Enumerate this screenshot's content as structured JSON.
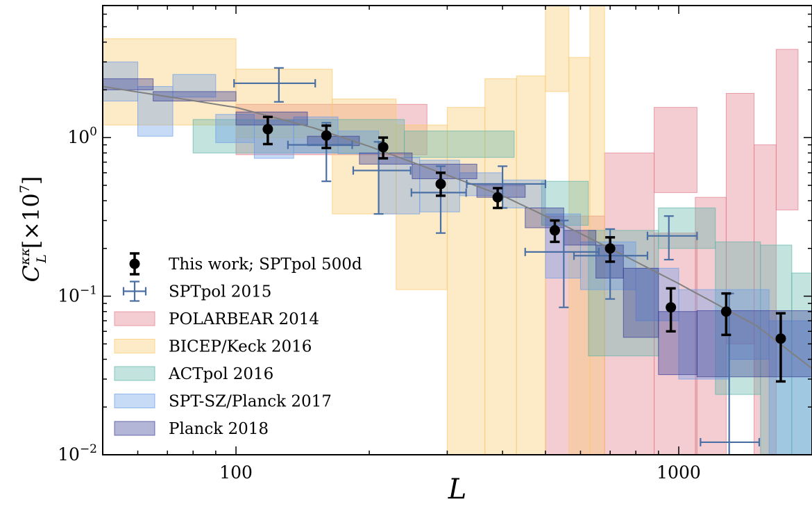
{
  "chart_data": {
    "type": "scatter",
    "title": "",
    "xlabel": "L",
    "ylabel_main": "C",
    "ylabel_superscript": "κκ",
    "ylabel_subscript": "L",
    "ylabel_units": "[×10",
    "ylabel_units_exp": "7",
    "ylabel_units_close": "]",
    "xscale": "log",
    "yscale": "log",
    "xlim": [
      50,
      2000
    ],
    "ylim": [
      0.01,
      6.8
    ],
    "x_ticks": [
      {
        "value": 100,
        "label": "100"
      },
      {
        "value": 1000,
        "label": "1000"
      }
    ],
    "y_ticks": [
      {
        "value": 0.01,
        "base": "10",
        "exp": "−2"
      },
      {
        "value": 0.1,
        "base": "10",
        "exp": "−1"
      },
      {
        "value": 1,
        "base": "10",
        "exp": "0"
      }
    ],
    "grid": false,
    "legend_position": "lower-left",
    "theory_curve": {
      "color": "#808080",
      "points": [
        [
          50,
          2.1
        ],
        [
          100,
          1.55
        ],
        [
          150,
          1.15
        ],
        [
          200,
          0.88
        ],
        [
          300,
          0.58
        ],
        [
          400,
          0.43
        ],
        [
          500,
          0.32
        ],
        [
          700,
          0.2
        ],
        [
          1000,
          0.12
        ],
        [
          1500,
          0.065
        ],
        [
          2000,
          0.035
        ]
      ]
    },
    "series": [
      {
        "name": "This work; SPTpol 500d",
        "kind": "points",
        "color": "#000000",
        "points": [
          {
            "x": 118,
            "y": 1.13,
            "ylo": 0.91,
            "yhi": 1.35
          },
          {
            "x": 160,
            "y": 1.03,
            "ylo": 0.86,
            "yhi": 1.19
          },
          {
            "x": 215,
            "y": 0.87,
            "ylo": 0.74,
            "yhi": 1.0
          },
          {
            "x": 290,
            "y": 0.51,
            "ylo": 0.43,
            "yhi": 0.6
          },
          {
            "x": 390,
            "y": 0.42,
            "ylo": 0.36,
            "yhi": 0.48
          },
          {
            "x": 525,
            "y": 0.26,
            "ylo": 0.22,
            "yhi": 0.3
          },
          {
            "x": 700,
            "y": 0.2,
            "ylo": 0.165,
            "yhi": 0.235
          },
          {
            "x": 960,
            "y": 0.085,
            "ylo": 0.06,
            "yhi": 0.112
          },
          {
            "x": 1280,
            "y": 0.08,
            "ylo": 0.057,
            "yhi": 0.104
          },
          {
            "x": 1700,
            "y": 0.054,
            "ylo": 0.029,
            "yhi": 0.078
          }
        ]
      },
      {
        "name": "SPTpol 2015",
        "kind": "errorbars",
        "color": "#4a6fa5",
        "points": [
          {
            "x": 125,
            "y": 2.2,
            "xlo": 99,
            "xhi": 151,
            "ylo": 1.68,
            "yhi": 2.75
          },
          {
            "x": 160,
            "y": 0.9,
            "xlo": 131,
            "xhi": 183,
            "ylo": 0.53,
            "yhi": 1.24
          },
          {
            "x": 210,
            "y": 0.62,
            "xlo": 184,
            "xhi": 248,
            "ylo": 0.33,
            "yhi": 0.94
          },
          {
            "x": 290,
            "y": 0.45,
            "xlo": 249,
            "xhi": 331,
            "ylo": 0.25,
            "yhi": 0.66
          },
          {
            "x": 400,
            "y": 0.51,
            "xlo": 332,
            "xhi": 500,
            "ylo": 0.36,
            "yhi": 0.66
          },
          {
            "x": 550,
            "y": 0.19,
            "xlo": 450,
            "xhi": 660,
            "ylo": 0.085,
            "yhi": 0.3
          },
          {
            "x": 700,
            "y": 0.18,
            "xlo": 580,
            "xhi": 850,
            "ylo": 0.096,
            "yhi": 0.265
          },
          {
            "x": 950,
            "y": 0.24,
            "xlo": 850,
            "xhi": 1100,
            "ylo": 0.17,
            "yhi": 0.32
          },
          {
            "x": 1300,
            "y": 0.012,
            "xlo": 1120,
            "xhi": 1520,
            "ylo": 0.005,
            "yhi": 0.104
          }
        ]
      },
      {
        "name": "POLARBEAR 2014",
        "kind": "boxes",
        "color": "#e17c8a",
        "boxes": [
          {
            "x0": 100,
            "x1": 270,
            "y0": 0.78,
            "y1": 1.62
          },
          {
            "x0": 500,
            "x1": 680,
            "y0": 0.005,
            "y1": 0.32
          },
          {
            "x0": 680,
            "x1": 880,
            "y0": 0.005,
            "y1": 0.8
          },
          {
            "x0": 880,
            "x1": 1100,
            "y0": 0.45,
            "y1": 1.55
          },
          {
            "x0": 880,
            "x1": 1100,
            "y0": 0.005,
            "y1": 0.25
          },
          {
            "x0": 1090,
            "x1": 1280,
            "y0": 0.005,
            "y1": 0.42
          },
          {
            "x0": 1280,
            "x1": 1480,
            "y0": 0.05,
            "y1": 1.9
          },
          {
            "x0": 1480,
            "x1": 1660,
            "y0": 0.005,
            "y1": 0.9
          },
          {
            "x0": 1660,
            "x1": 1860,
            "y0": 0.35,
            "y1": 3.6
          }
        ]
      },
      {
        "name": "BICEP/Keck 2016",
        "kind": "boxes",
        "color": "#fbc96b",
        "boxes": [
          {
            "x0": 50,
            "x1": 100,
            "y0": 1.2,
            "y1": 4.2
          },
          {
            "x0": 100,
            "x1": 165,
            "y0": 1.0,
            "y1": 2.7
          },
          {
            "x0": 165,
            "x1": 230,
            "y0": 0.33,
            "y1": 1.75
          },
          {
            "x0": 230,
            "x1": 300,
            "y0": 0.11,
            "y1": 1.2
          },
          {
            "x0": 300,
            "x1": 365,
            "y0": 0.005,
            "y1": 1.55
          },
          {
            "x0": 365,
            "x1": 430,
            "y0": 0.005,
            "y1": 2.35
          },
          {
            "x0": 430,
            "x1": 500,
            "y0": 0.005,
            "y1": 2.45
          },
          {
            "x0": 500,
            "x1": 565,
            "y0": 1.95,
            "y1": 8.0
          },
          {
            "x0": 565,
            "x1": 630,
            "y0": 0.005,
            "y1": 3.2
          },
          {
            "x0": 630,
            "x1": 680,
            "y0": 0.005,
            "y1": 8.0
          }
        ]
      },
      {
        "name": "ACTpol 2016",
        "kind": "boxes",
        "color": "#5fb5a8",
        "boxes": [
          {
            "x0": 80,
            "x1": 240,
            "y0": 0.8,
            "y1": 1.3
          },
          {
            "x0": 240,
            "x1": 425,
            "y0": 0.75,
            "y1": 1.1
          },
          {
            "x0": 490,
            "x1": 625,
            "y0": 0.28,
            "y1": 0.53
          },
          {
            "x0": 625,
            "x1": 900,
            "y0": 0.042,
            "y1": 0.26
          },
          {
            "x0": 900,
            "x1": 1210,
            "y0": 0.2,
            "y1": 0.36
          },
          {
            "x0": 1210,
            "x1": 1530,
            "y0": 0.024,
            "y1": 0.22
          },
          {
            "x0": 1530,
            "x1": 1800,
            "y0": 0.005,
            "y1": 0.21
          },
          {
            "x0": 1800,
            "x1": 2000,
            "y0": 0.005,
            "y1": 0.14
          }
        ]
      },
      {
        "name": "SPT-SZ/Planck 2017",
        "kind": "boxes",
        "color": "#6d9ee8",
        "boxes": [
          {
            "x0": 50,
            "x1": 60,
            "y0": 1.7,
            "y1": 3.0
          },
          {
            "x0": 60,
            "x1": 72,
            "y0": 1.02,
            "y1": 2.1
          },
          {
            "x0": 72,
            "x1": 90,
            "y0": 1.8,
            "y1": 2.5
          },
          {
            "x0": 90,
            "x1": 110,
            "y0": 0.93,
            "y1": 1.4
          },
          {
            "x0": 110,
            "x1": 135,
            "y0": 0.74,
            "y1": 1.28
          },
          {
            "x0": 135,
            "x1": 170,
            "y0": 0.8,
            "y1": 1.35
          },
          {
            "x0": 170,
            "x1": 210,
            "y0": 0.79,
            "y1": 1.1
          },
          {
            "x0": 210,
            "x1": 260,
            "y0": 0.33,
            "y1": 0.75
          },
          {
            "x0": 260,
            "x1": 320,
            "y0": 0.34,
            "y1": 0.72
          },
          {
            "x0": 320,
            "x1": 400,
            "y0": 0.43,
            "y1": 0.6
          },
          {
            "x0": 400,
            "x1": 500,
            "y0": 0.36,
            "y1": 0.54
          },
          {
            "x0": 500,
            "x1": 600,
            "y0": 0.13,
            "y1": 0.33
          },
          {
            "x0": 600,
            "x1": 800,
            "y0": 0.11,
            "y1": 0.22
          },
          {
            "x0": 800,
            "x1": 1000,
            "y0": 0.07,
            "y1": 0.15
          },
          {
            "x0": 1000,
            "x1": 1300,
            "y0": 0.03,
            "y1": 0.11
          },
          {
            "x0": 1300,
            "x1": 1600,
            "y0": 0.04,
            "y1": 0.11
          },
          {
            "x0": 1600,
            "x1": 2000,
            "y0": 0.005,
            "y1": 0.07
          }
        ]
      },
      {
        "name": "Planck 2018",
        "kind": "boxes",
        "color": "#3a3f97",
        "boxes": [
          {
            "x0": 50,
            "x1": 65,
            "y0": 2.0,
            "y1": 2.35
          },
          {
            "x0": 65,
            "x1": 100,
            "y0": 1.7,
            "y1": 1.95
          },
          {
            "x0": 100,
            "x1": 145,
            "y0": 1.2,
            "y1": 1.45
          },
          {
            "x0": 145,
            "x1": 190,
            "y0": 0.89,
            "y1": 1.02
          },
          {
            "x0": 190,
            "x1": 250,
            "y0": 0.68,
            "y1": 0.8
          },
          {
            "x0": 250,
            "x1": 350,
            "y0": 0.55,
            "y1": 0.68
          },
          {
            "x0": 350,
            "x1": 450,
            "y0": 0.42,
            "y1": 0.5
          },
          {
            "x0": 450,
            "x1": 550,
            "y0": 0.27,
            "y1": 0.36
          },
          {
            "x0": 550,
            "x1": 650,
            "y0": 0.21,
            "y1": 0.26
          },
          {
            "x0": 650,
            "x1": 750,
            "y0": 0.13,
            "y1": 0.21
          },
          {
            "x0": 750,
            "x1": 900,
            "y0": 0.055,
            "y1": 0.15
          },
          {
            "x0": 900,
            "x1": 1100,
            "y0": 0.032,
            "y1": 0.08
          },
          {
            "x0": 1100,
            "x1": 2000,
            "y0": 0.031,
            "y1": 0.081
          }
        ]
      }
    ]
  }
}
